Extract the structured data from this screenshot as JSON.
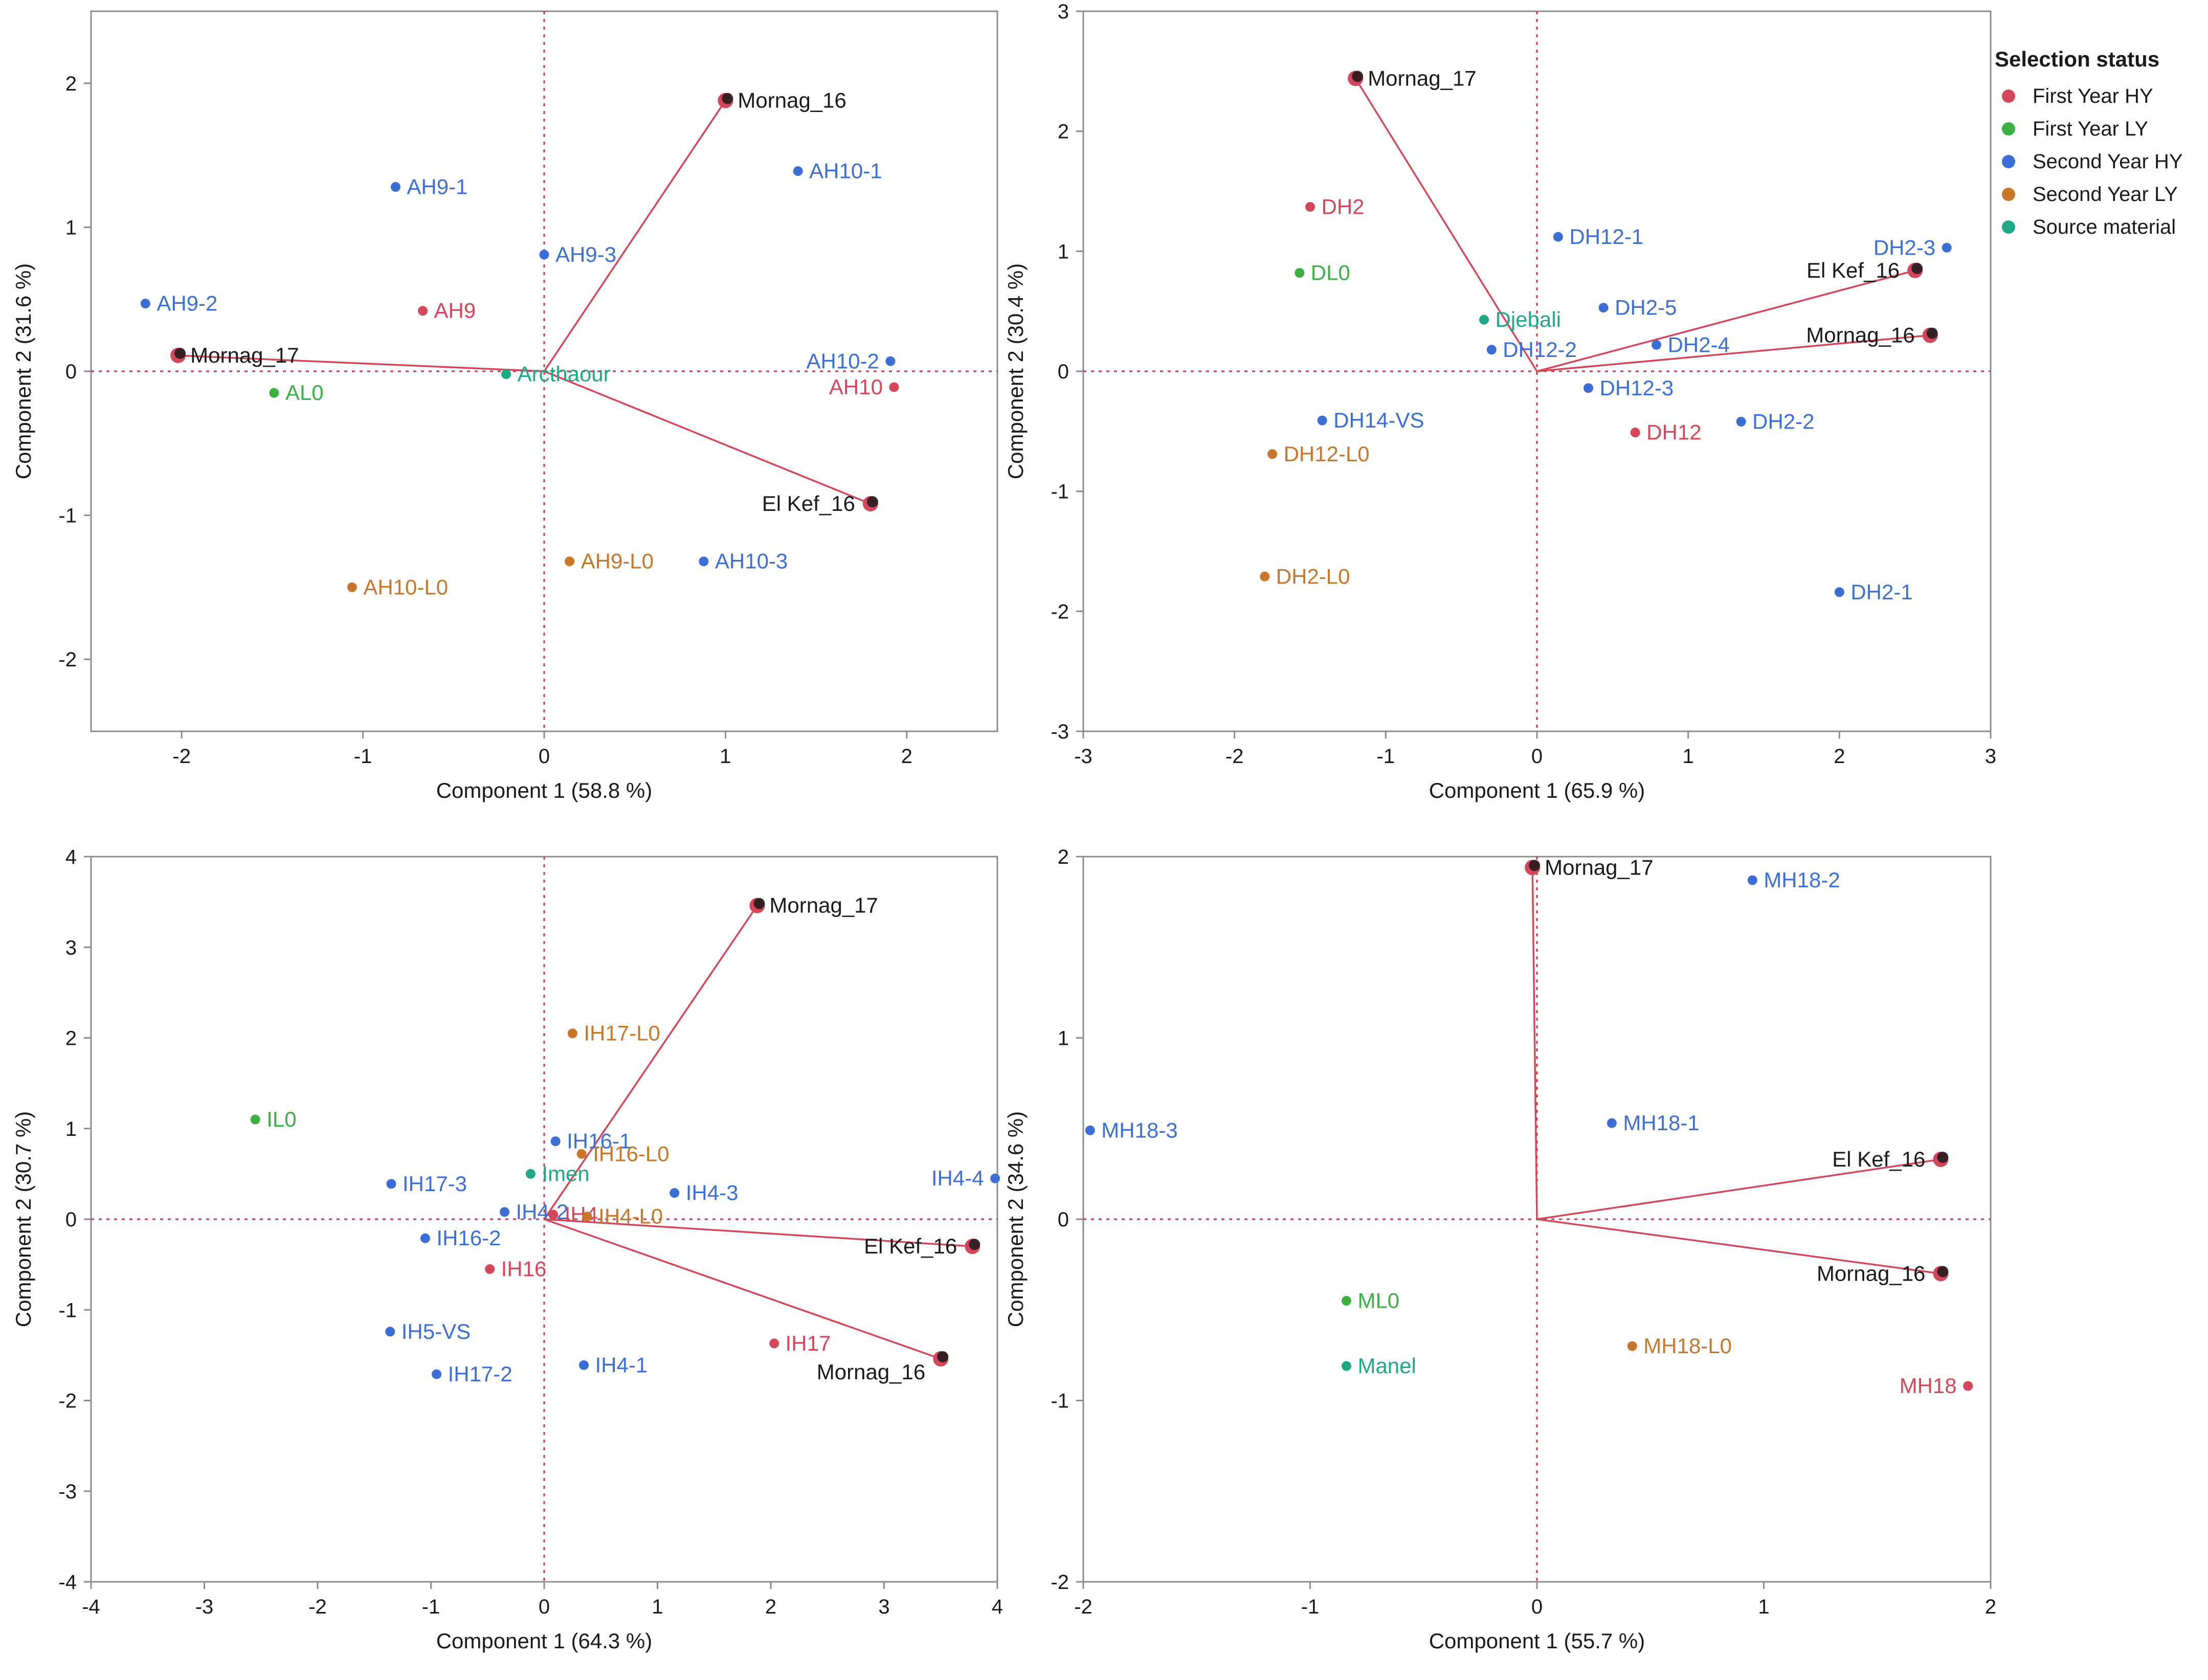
{
  "legend": {
    "title": "Selection status",
    "entries": [
      {
        "key": "first_hy",
        "label": "First Year HY",
        "color": "#d4475a"
      },
      {
        "key": "first_ly",
        "label": "First Year LY",
        "color": "#3cb043"
      },
      {
        "key": "second_hy",
        "label": "Second Year HY",
        "color": "#3b6fd6"
      },
      {
        "key": "second_ly",
        "label": "Second Year LY",
        "color": "#c8772a"
      },
      {
        "key": "source",
        "label": "Source material",
        "color": "#20a785"
      }
    ]
  },
  "chart_data": [
    {
      "type": "scatter",
      "xlabel": "Component 1  (58.8 %)",
      "ylabel": "Component 2  (31.6 %)",
      "xlim": [
        -2.5,
        2.5
      ],
      "ylim": [
        -2.5,
        2.5
      ],
      "xticks": [
        -2,
        -1,
        0,
        1,
        2
      ],
      "yticks": [
        -2,
        -1,
        0,
        1,
        2
      ],
      "points": [
        {
          "label": "AH9-1",
          "x": -0.82,
          "y": 1.28,
          "group": "second_hy"
        },
        {
          "label": "AH9-2",
          "x": -2.2,
          "y": 0.47,
          "group": "second_hy"
        },
        {
          "label": "AH9-3",
          "x": 0.0,
          "y": 0.81,
          "group": "second_hy"
        },
        {
          "label": "AH10-1",
          "x": 1.4,
          "y": 1.39,
          "group": "second_hy"
        },
        {
          "label": "AH10-2",
          "x": 1.91,
          "y": 0.07,
          "group": "second_hy"
        },
        {
          "label": "AH10-3",
          "x": 0.88,
          "y": -1.32,
          "group": "second_hy"
        },
        {
          "label": "AH9",
          "x": -0.67,
          "y": 0.42,
          "group": "first_hy"
        },
        {
          "label": "AH10",
          "x": 1.93,
          "y": -0.11,
          "group": "first_hy"
        },
        {
          "label": "AL0",
          "x": -1.49,
          "y": -0.15,
          "group": "first_ly"
        },
        {
          "label": "AH9-L0",
          "x": 0.14,
          "y": -1.32,
          "group": "second_ly"
        },
        {
          "label": "AH10-L0",
          "x": -1.06,
          "y": -1.5,
          "group": "second_ly"
        },
        {
          "label": "Arcthaour",
          "x": -0.21,
          "y": -0.02,
          "group": "source"
        }
      ],
      "vectors": [
        {
          "label": "Mornag_16",
          "x": 1.0,
          "y": 1.88
        },
        {
          "label": "Mornag_17",
          "x": -2.02,
          "y": 0.11
        },
        {
          "label": "El Kef_16",
          "x": 1.8,
          "y": -0.92
        }
      ]
    },
    {
      "type": "scatter",
      "xlabel": "Component 1  (65.9 %)",
      "ylabel": "Component 2  (30.4 %)",
      "xlim": [
        -3,
        3
      ],
      "ylim": [
        -3,
        3
      ],
      "xticks": [
        -3,
        -2,
        -1,
        0,
        1,
        2,
        3
      ],
      "yticks": [
        -3,
        -2,
        -1,
        0,
        1,
        2,
        3
      ],
      "points": [
        {
          "label": "DH2",
          "x": -1.5,
          "y": 1.37,
          "group": "first_hy"
        },
        {
          "label": "DH12",
          "x": 0.65,
          "y": -0.51,
          "group": "first_hy"
        },
        {
          "label": "DL0",
          "x": -1.57,
          "y": 0.82,
          "group": "first_ly"
        },
        {
          "label": "Djebali",
          "x": -0.35,
          "y": 0.43,
          "group": "source"
        },
        {
          "label": "DH12-1",
          "x": 0.14,
          "y": 1.12,
          "group": "second_hy"
        },
        {
          "label": "DH2-5",
          "x": 0.44,
          "y": 0.53,
          "group": "second_hy"
        },
        {
          "label": "DH2-4",
          "x": 0.79,
          "y": 0.22,
          "group": "second_hy"
        },
        {
          "label": "DH12-2",
          "x": -0.3,
          "y": 0.18,
          "group": "second_hy"
        },
        {
          "label": "DH12-3",
          "x": 0.34,
          "y": -0.14,
          "group": "second_hy"
        },
        {
          "label": "DH14-VS",
          "x": -1.42,
          "y": -0.41,
          "group": "second_hy"
        },
        {
          "label": "DH2-2",
          "x": 1.35,
          "y": -0.42,
          "group": "second_hy"
        },
        {
          "label": "DH2-3",
          "x": 2.71,
          "y": 1.03,
          "group": "second_hy"
        },
        {
          "label": "DH2-1",
          "x": 2.0,
          "y": -1.84,
          "group": "second_hy"
        },
        {
          "label": "DH12-L0",
          "x": -1.75,
          "y": -0.69,
          "group": "second_ly"
        },
        {
          "label": "DH2-L0",
          "x": -1.8,
          "y": -1.71,
          "group": "second_ly"
        }
      ],
      "vectors": [
        {
          "label": "Mornag_17",
          "x": -1.2,
          "y": 2.44
        },
        {
          "label": "El Kef_16",
          "x": 2.5,
          "y": 0.84
        },
        {
          "label": "Mornag_16",
          "x": 2.6,
          "y": 0.3
        }
      ]
    },
    {
      "type": "scatter",
      "xlabel": "Component 1  (64.3 %)",
      "ylabel": "Component 2  (30.7 %)",
      "xlim": [
        -4,
        4
      ],
      "ylim": [
        -4,
        4
      ],
      "xticks": [
        -4,
        -3,
        -2,
        -1,
        0,
        1,
        2,
        3,
        4
      ],
      "yticks": [
        -4,
        -3,
        -2,
        -1,
        0,
        1,
        2,
        3,
        4
      ],
      "points": [
        {
          "label": "IL0",
          "x": -2.55,
          "y": 1.1,
          "group": "first_ly"
        },
        {
          "label": "IH17-L0",
          "x": 0.25,
          "y": 2.05,
          "group": "second_ly"
        },
        {
          "label": "IH16-1",
          "x": 0.1,
          "y": 0.86,
          "group": "second_hy"
        },
        {
          "label": "IH16-L0",
          "x": 0.33,
          "y": 0.72,
          "group": "second_ly"
        },
        {
          "label": "Imen",
          "x": -0.12,
          "y": 0.5,
          "group": "source"
        },
        {
          "label": "IH17-3",
          "x": -1.35,
          "y": 0.39,
          "group": "second_hy"
        },
        {
          "label": "IH4-4",
          "x": 3.98,
          "y": 0.45,
          "group": "second_hy"
        },
        {
          "label": "IH4-3",
          "x": 1.15,
          "y": 0.29,
          "group": "second_hy"
        },
        {
          "label": "IH4-2",
          "x": -0.35,
          "y": 0.08,
          "group": "second_hy"
        },
        {
          "label": "IH4",
          "x": 0.08,
          "y": 0.05,
          "group": "first_hy"
        },
        {
          "label": "IH4-L0",
          "x": 0.38,
          "y": 0.03,
          "group": "second_ly"
        },
        {
          "label": "IH16-2",
          "x": -1.05,
          "y": -0.21,
          "group": "second_hy"
        },
        {
          "label": "IH16",
          "x": -0.48,
          "y": -0.55,
          "group": "first_hy"
        },
        {
          "label": "IH5-VS",
          "x": -1.36,
          "y": -1.24,
          "group": "second_hy"
        },
        {
          "label": "IH17",
          "x": 2.03,
          "y": -1.37,
          "group": "first_hy"
        },
        {
          "label": "IH4-1",
          "x": 0.35,
          "y": -1.61,
          "group": "second_hy"
        },
        {
          "label": "IH17-2",
          "x": -0.95,
          "y": -1.71,
          "group": "second_hy"
        }
      ],
      "vectors": [
        {
          "label": "Mornag_17",
          "x": 1.88,
          "y": 3.46
        },
        {
          "label": "El Kef_16",
          "x": 3.78,
          "y": -0.3
        },
        {
          "label": "Mornag_16",
          "x": 3.5,
          "y": -1.54
        }
      ]
    },
    {
      "type": "scatter",
      "xlabel": "Component 1  (55.7 %)",
      "ylabel": "Component 2  (34.6 %)",
      "xlim": [
        -2,
        2
      ],
      "ylim": [
        -2,
        2
      ],
      "xticks": [
        -2,
        -1,
        0,
        1,
        2
      ],
      "yticks": [
        -2,
        -1,
        0,
        1,
        2
      ],
      "points": [
        {
          "label": "MH18-2",
          "x": 0.95,
          "y": 1.87,
          "group": "second_hy"
        },
        {
          "label": "MH18-3",
          "x": -1.97,
          "y": 0.49,
          "group": "second_hy"
        },
        {
          "label": "MH18-1",
          "x": 0.33,
          "y": 0.53,
          "group": "second_hy"
        },
        {
          "label": "ML0",
          "x": -0.84,
          "y": -0.45,
          "group": "first_ly"
        },
        {
          "label": "Manel",
          "x": -0.84,
          "y": -0.81,
          "group": "source"
        },
        {
          "label": "MH18-L0",
          "x": 0.42,
          "y": -0.7,
          "group": "second_ly"
        },
        {
          "label": "MH18",
          "x": 1.9,
          "y": -0.92,
          "group": "first_hy"
        }
      ],
      "vectors": [
        {
          "label": "Mornag_17",
          "x": -0.02,
          "y": 1.94
        },
        {
          "label": "El Kef_16",
          "x": 1.78,
          "y": 0.33
        },
        {
          "label": "Mornag_16",
          "x": 1.78,
          "y": -0.3
        }
      ]
    }
  ]
}
